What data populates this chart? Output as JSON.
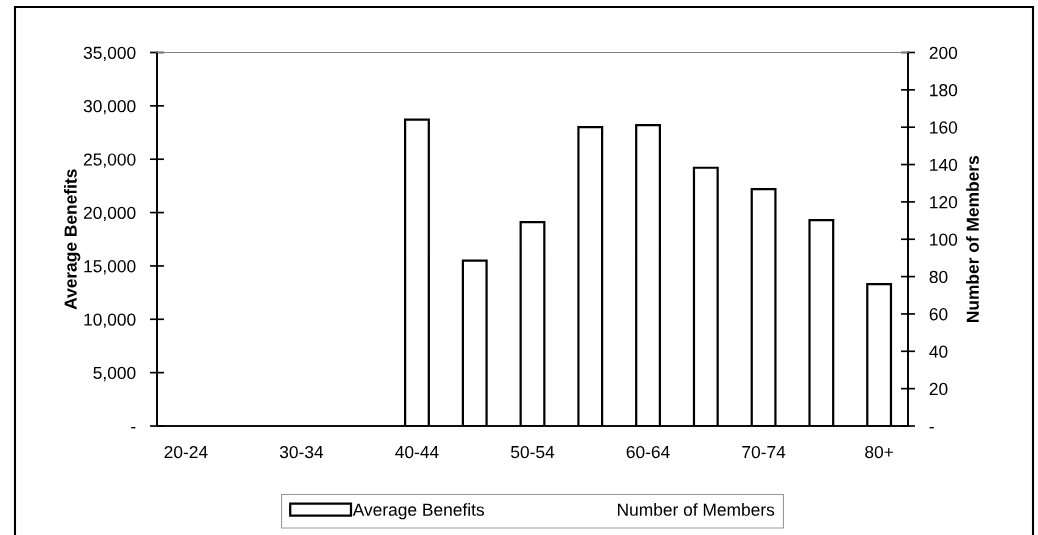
{
  "chart_data": {
    "type": "bar",
    "ylabel": "Average Benefits",
    "y2label": "Number of Members",
    "categories": [
      "20-24",
      null,
      "30-34",
      null,
      "40-44",
      null,
      "50-54",
      null,
      "60-64",
      null,
      "70-74",
      null,
      "80+"
    ],
    "series": [
      {
        "name": "Average Benefits",
        "type": "bar",
        "color": "#ffffff",
        "values": [
          null,
          null,
          null,
          null,
          28700,
          15500,
          19100,
          28000,
          28200,
          24200,
          22200,
          19300,
          13300
        ]
      },
      {
        "name": "Number of Members",
        "type": "line",
        "values": [
          null,
          null,
          null,
          null,
          null,
          null,
          null,
          null,
          null,
          null,
          null,
          null,
          null
        ]
      }
    ],
    "ylim": [
      0,
      35000
    ],
    "yticks": [
      {
        "value": 0,
        "label": "-"
      },
      {
        "value": 5000,
        "label": "5,000"
      },
      {
        "value": 10000,
        "label": "10,000"
      },
      {
        "value": 15000,
        "label": "15,000"
      },
      {
        "value": 20000,
        "label": "20,000"
      },
      {
        "value": 25000,
        "label": "25,000"
      },
      {
        "value": 30000,
        "label": "30,000"
      },
      {
        "value": 35000,
        "label": "35,000"
      }
    ],
    "y2lim": [
      0,
      200
    ],
    "y2ticks": [
      {
        "value": 0,
        "label": "-"
      },
      20,
      40,
      60,
      80,
      100,
      120,
      140,
      160,
      180,
      200
    ],
    "grid": false,
    "legend": "bottom"
  }
}
